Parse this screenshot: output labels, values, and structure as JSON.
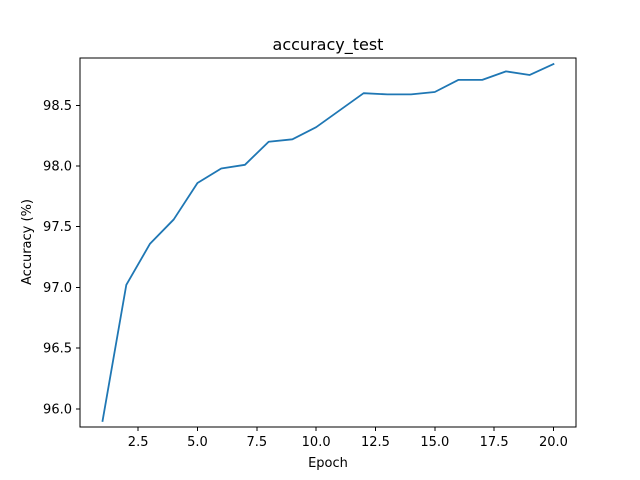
{
  "chart_data": {
    "type": "line",
    "title": "accuracy_test",
    "xlabel": "Epoch",
    "ylabel": "Accuracy (%)",
    "xlim": [
      0.05,
      20.95
    ],
    "ylim": [
      95.85,
      98.89
    ],
    "xticks": [
      2.5,
      5.0,
      7.5,
      10.0,
      12.5,
      15.0,
      17.5,
      20.0
    ],
    "xtick_labels": [
      "2.5",
      "5.0",
      "7.5",
      "10.0",
      "12.5",
      "15.0",
      "17.5",
      "20.0"
    ],
    "yticks": [
      96.0,
      96.5,
      97.0,
      97.5,
      98.0,
      98.5
    ],
    "ytick_labels": [
      "96.0",
      "96.5",
      "97.0",
      "97.5",
      "98.0",
      "98.5"
    ],
    "grid": false,
    "series": [
      {
        "color": "#1f77b4",
        "x": [
          1,
          2,
          3,
          4,
          5,
          6,
          7,
          8,
          9,
          10,
          11,
          12,
          13,
          14,
          15,
          16,
          17,
          18,
          19,
          20
        ],
        "y": [
          95.9,
          97.02,
          97.36,
          97.56,
          97.86,
          97.98,
          98.01,
          98.2,
          98.22,
          98.32,
          98.46,
          98.6,
          98.59,
          98.59,
          98.61,
          98.71,
          98.71,
          98.78,
          98.75,
          98.84
        ]
      }
    ]
  }
}
